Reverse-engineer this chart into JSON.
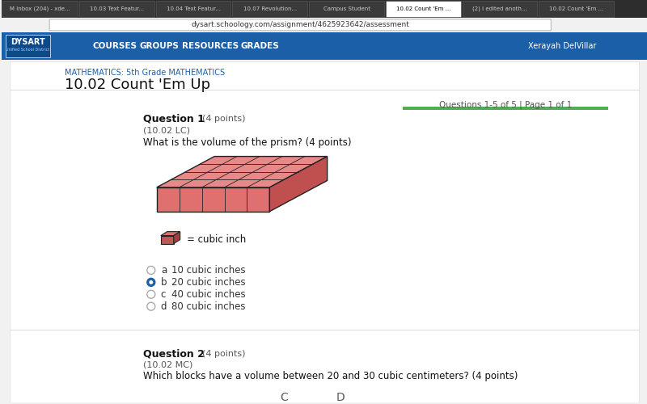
{
  "bg_color": "#f1f1f1",
  "page_bg": "#ffffff",
  "navbar_color": "#1a5fa8",
  "navbar_text": [
    "COURSES",
    "GROUPS",
    "RESOURCES",
    "GRADES"
  ],
  "brand": "DYSART",
  "brand_subtitle": "Unified School District",
  "breadcrumb": "MATHEMATICS: 5th Grade MATHEMATICS",
  "page_title": "10.02 Count 'Em Up",
  "progress_text": "Questions 1-5 of 5 | Page 1 of 1",
  "progress_bar_color": "#4caf50",
  "question_label": "Question 1",
  "question_points": "(4 points)",
  "question_sub": "(10.02 LC)",
  "question_text": "What is the volume of the prism? (4 points)",
  "prism_face_color": "#e07070",
  "prism_top_color": "#e88888",
  "prism_side_color": "#c05050",
  "prism_line_color": "#222222",
  "legend_color": "#c05858",
  "legend_text": "= cubic inch",
  "options": [
    {
      "letter": "a",
      "text": "10 cubic inches",
      "selected": false
    },
    {
      "letter": "b",
      "text": "20 cubic inches",
      "selected": true
    },
    {
      "letter": "c",
      "text": "40 cubic inches",
      "selected": false
    },
    {
      "letter": "d",
      "text": "80 cubic inches",
      "selected": false
    }
  ],
  "radio_color": "#1a5fa8",
  "option_fontsize": 10,
  "q2_label": "Question 2",
  "q2_points": "(4 points)",
  "q2_sub": "(10.02 MC)",
  "q2_text": "Which blocks have a volume between 20 and 30 cubic centimeters? (4 points)",
  "user_name": "Xerayah DelVillar",
  "tab_active": "10.02 Count 'Em ...",
  "url": "dysart.schoology.com/assignment/4625923642/assessment"
}
